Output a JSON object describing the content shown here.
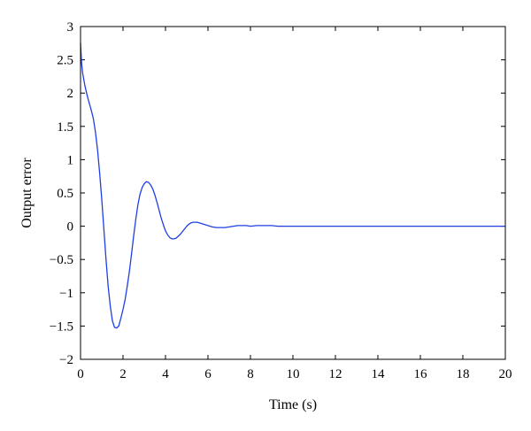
{
  "chart_data": {
    "type": "line",
    "title": "",
    "xlabel": "Time (s)",
    "ylabel": "Output error",
    "xlim": [
      0,
      20
    ],
    "ylim": [
      -2,
      3
    ],
    "x_ticks": [
      0,
      2,
      4,
      6,
      8,
      10,
      12,
      14,
      16,
      18,
      20
    ],
    "x_tick_labels": [
      "0",
      "2",
      "4",
      "6",
      "8",
      "10",
      "12",
      "14",
      "16",
      "18",
      "20"
    ],
    "y_ticks": [
      -2,
      -1.5,
      -1,
      -0.5,
      0,
      0.5,
      1,
      1.5,
      2,
      2.5,
      3
    ],
    "y_tick_labels": [
      "−2",
      "−1.5",
      "−1",
      "−0.5",
      "0",
      "0.5",
      "1",
      "1.5",
      "2",
      "2.5",
      "3"
    ],
    "grid": false,
    "legend": "none",
    "series": [
      {
        "color": "#1f3fe6",
        "x": [
          0,
          0.05,
          0.1,
          0.2,
          0.3,
          0.4,
          0.5,
          0.6,
          0.7,
          0.8,
          0.9,
          1.0,
          1.1,
          1.2,
          1.3,
          1.4,
          1.5,
          1.6,
          1.7,
          1.8,
          1.9,
          2.0,
          2.1,
          2.2,
          2.3,
          2.4,
          2.5,
          2.6,
          2.7,
          2.8,
          2.9,
          3.0,
          3.1,
          3.2,
          3.3,
          3.4,
          3.5,
          3.6,
          3.7,
          3.8,
          3.9,
          4.0,
          4.1,
          4.2,
          4.3,
          4.4,
          4.5,
          4.6,
          4.7,
          4.8,
          4.9,
          5.0,
          5.1,
          5.2,
          5.3,
          5.4,
          5.5,
          5.6,
          5.8,
          6.0,
          6.2,
          6.4,
          6.6,
          6.8,
          7.0,
          7.2,
          7.4,
          7.6,
          7.8,
          8.0,
          8.3,
          8.6,
          9.0,
          9.3,
          9.6,
          10.0,
          12.0,
          14.0,
          16.0,
          18.0,
          20.0
        ],
        "y": [
          2.75,
          2.45,
          2.3,
          2.12,
          1.98,
          1.86,
          1.75,
          1.62,
          1.42,
          1.15,
          0.8,
          0.4,
          -0.05,
          -0.5,
          -0.9,
          -1.2,
          -1.42,
          -1.52,
          -1.53,
          -1.5,
          -1.38,
          -1.25,
          -1.1,
          -0.9,
          -0.68,
          -0.42,
          -0.15,
          0.1,
          0.32,
          0.48,
          0.58,
          0.64,
          0.67,
          0.66,
          0.62,
          0.56,
          0.47,
          0.36,
          0.24,
          0.12,
          0.02,
          -0.07,
          -0.13,
          -0.17,
          -0.19,
          -0.19,
          -0.18,
          -0.15,
          -0.12,
          -0.08,
          -0.04,
          0.0,
          0.03,
          0.05,
          0.06,
          0.06,
          0.06,
          0.05,
          0.03,
          0.01,
          -0.01,
          -0.02,
          -0.02,
          -0.02,
          -0.01,
          0.0,
          0.01,
          0.01,
          0.01,
          0.0,
          0.01,
          0.01,
          0.01,
          0.0,
          0.0,
          0.0,
          0.0,
          0.0,
          0.0,
          0.0,
          0.0
        ]
      }
    ]
  }
}
